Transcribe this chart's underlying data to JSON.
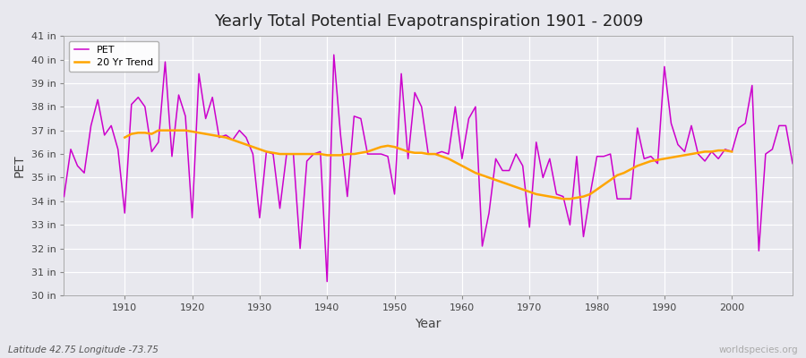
{
  "title": "Yearly Total Potential Evapotranspiration 1901 - 2009",
  "xlabel": "Year",
  "ylabel": "PET",
  "footnote_left": "Latitude 42.75 Longitude -73.75",
  "footnote_right": "worldspecies.org",
  "pet_color": "#cc00cc",
  "trend_color": "#FFA500",
  "plot_bg_color": "#e8e8ee",
  "fig_bg_color": "#e8e8ee",
  "ylim": [
    30,
    41
  ],
  "xlim": [
    1901,
    2009
  ],
  "years": [
    1901,
    1902,
    1903,
    1904,
    1905,
    1906,
    1907,
    1908,
    1909,
    1910,
    1911,
    1912,
    1913,
    1914,
    1915,
    1916,
    1917,
    1918,
    1919,
    1920,
    1921,
    1922,
    1923,
    1924,
    1925,
    1926,
    1927,
    1928,
    1929,
    1930,
    1931,
    1932,
    1933,
    1934,
    1935,
    1936,
    1937,
    1938,
    1939,
    1940,
    1941,
    1942,
    1943,
    1944,
    1945,
    1946,
    1947,
    1948,
    1949,
    1950,
    1951,
    1952,
    1953,
    1954,
    1955,
    1956,
    1957,
    1958,
    1959,
    1960,
    1961,
    1962,
    1963,
    1964,
    1965,
    1966,
    1967,
    1968,
    1969,
    1970,
    1971,
    1972,
    1973,
    1974,
    1975,
    1976,
    1977,
    1978,
    1979,
    1980,
    1981,
    1982,
    1983,
    1984,
    1985,
    1986,
    1987,
    1988,
    1989,
    1990,
    1991,
    1992,
    1993,
    1994,
    1995,
    1996,
    1997,
    1998,
    1999,
    2000,
    2001,
    2002,
    2003,
    2004,
    2005,
    2006,
    2007,
    2008,
    2009
  ],
  "pet_values": [
    34.2,
    36.2,
    35.5,
    35.2,
    37.2,
    38.3,
    36.8,
    37.2,
    36.2,
    33.5,
    38.1,
    38.4,
    38.0,
    36.1,
    36.5,
    39.9,
    35.9,
    38.5,
    37.6,
    33.3,
    39.4,
    37.5,
    38.4,
    36.7,
    36.8,
    36.6,
    37.0,
    36.7,
    36.0,
    33.3,
    36.1,
    36.0,
    33.7,
    36.0,
    36.0,
    32.0,
    35.7,
    36.0,
    36.1,
    30.6,
    40.2,
    36.8,
    34.2,
    37.6,
    37.5,
    36.0,
    36.0,
    36.0,
    35.9,
    34.3,
    39.4,
    35.8,
    38.6,
    38.0,
    36.0,
    36.0,
    36.1,
    36.0,
    38.0,
    35.8,
    37.5,
    38.0,
    32.1,
    33.5,
    35.8,
    35.3,
    35.3,
    36.0,
    35.5,
    32.9,
    36.5,
    35.0,
    35.8,
    34.3,
    34.2,
    33.0,
    35.9,
    32.5,
    34.3,
    35.9,
    35.9,
    36.0,
    34.1,
    34.1,
    34.1,
    37.1,
    35.8,
    35.9,
    35.6,
    39.7,
    37.3,
    36.4,
    36.1,
    37.2,
    36.0,
    35.7,
    36.1,
    35.8,
    36.2,
    36.1,
    37.1,
    37.3,
    38.9,
    31.9,
    36.0,
    36.2,
    37.2,
    37.2,
    35.6
  ],
  "trend_years": [
    1910,
    1911,
    1912,
    1913,
    1914,
    1915,
    1916,
    1917,
    1918,
    1919,
    1920,
    1921,
    1922,
    1923,
    1924,
    1925,
    1926,
    1927,
    1928,
    1929,
    1930,
    1931,
    1932,
    1933,
    1934,
    1935,
    1936,
    1937,
    1938,
    1939,
    1940,
    1941,
    1942,
    1943,
    1944,
    1945,
    1946,
    1947,
    1948,
    1949,
    1950,
    1951,
    1952,
    1953,
    1954,
    1955,
    1956,
    1957,
    1958,
    1959,
    1960,
    1961,
    1962,
    1963,
    1964,
    1965,
    1966,
    1967,
    1968,
    1969,
    1970,
    1971,
    1972,
    1973,
    1974,
    1975,
    1976,
    1977,
    1978,
    1979,
    1980,
    1981,
    1982,
    1983,
    1984,
    1985,
    1986,
    1987,
    1988,
    1989,
    1990,
    1991,
    1992,
    1993,
    1994,
    1995,
    1996,
    1997,
    1998,
    1999,
    2000
  ],
  "trend_values": [
    36.7,
    36.85,
    36.9,
    36.9,
    36.85,
    37.0,
    37.0,
    37.0,
    37.0,
    37.0,
    36.95,
    36.9,
    36.85,
    36.8,
    36.75,
    36.7,
    36.6,
    36.5,
    36.4,
    36.3,
    36.2,
    36.1,
    36.05,
    36.0,
    36.0,
    36.0,
    36.0,
    36.0,
    36.0,
    36.0,
    35.95,
    35.95,
    35.95,
    36.0,
    36.0,
    36.05,
    36.1,
    36.2,
    36.3,
    36.35,
    36.3,
    36.2,
    36.1,
    36.05,
    36.05,
    36.0,
    36.0,
    35.9,
    35.8,
    35.65,
    35.5,
    35.35,
    35.2,
    35.1,
    35.0,
    34.9,
    34.8,
    34.7,
    34.6,
    34.5,
    34.4,
    34.3,
    34.25,
    34.2,
    34.15,
    34.1,
    34.1,
    34.15,
    34.2,
    34.3,
    34.5,
    34.7,
    34.9,
    35.1,
    35.2,
    35.35,
    35.5,
    35.6,
    35.7,
    35.75,
    35.8,
    35.85,
    35.9,
    35.95,
    36.0,
    36.05,
    36.1,
    36.1,
    36.15,
    36.15,
    36.1
  ]
}
